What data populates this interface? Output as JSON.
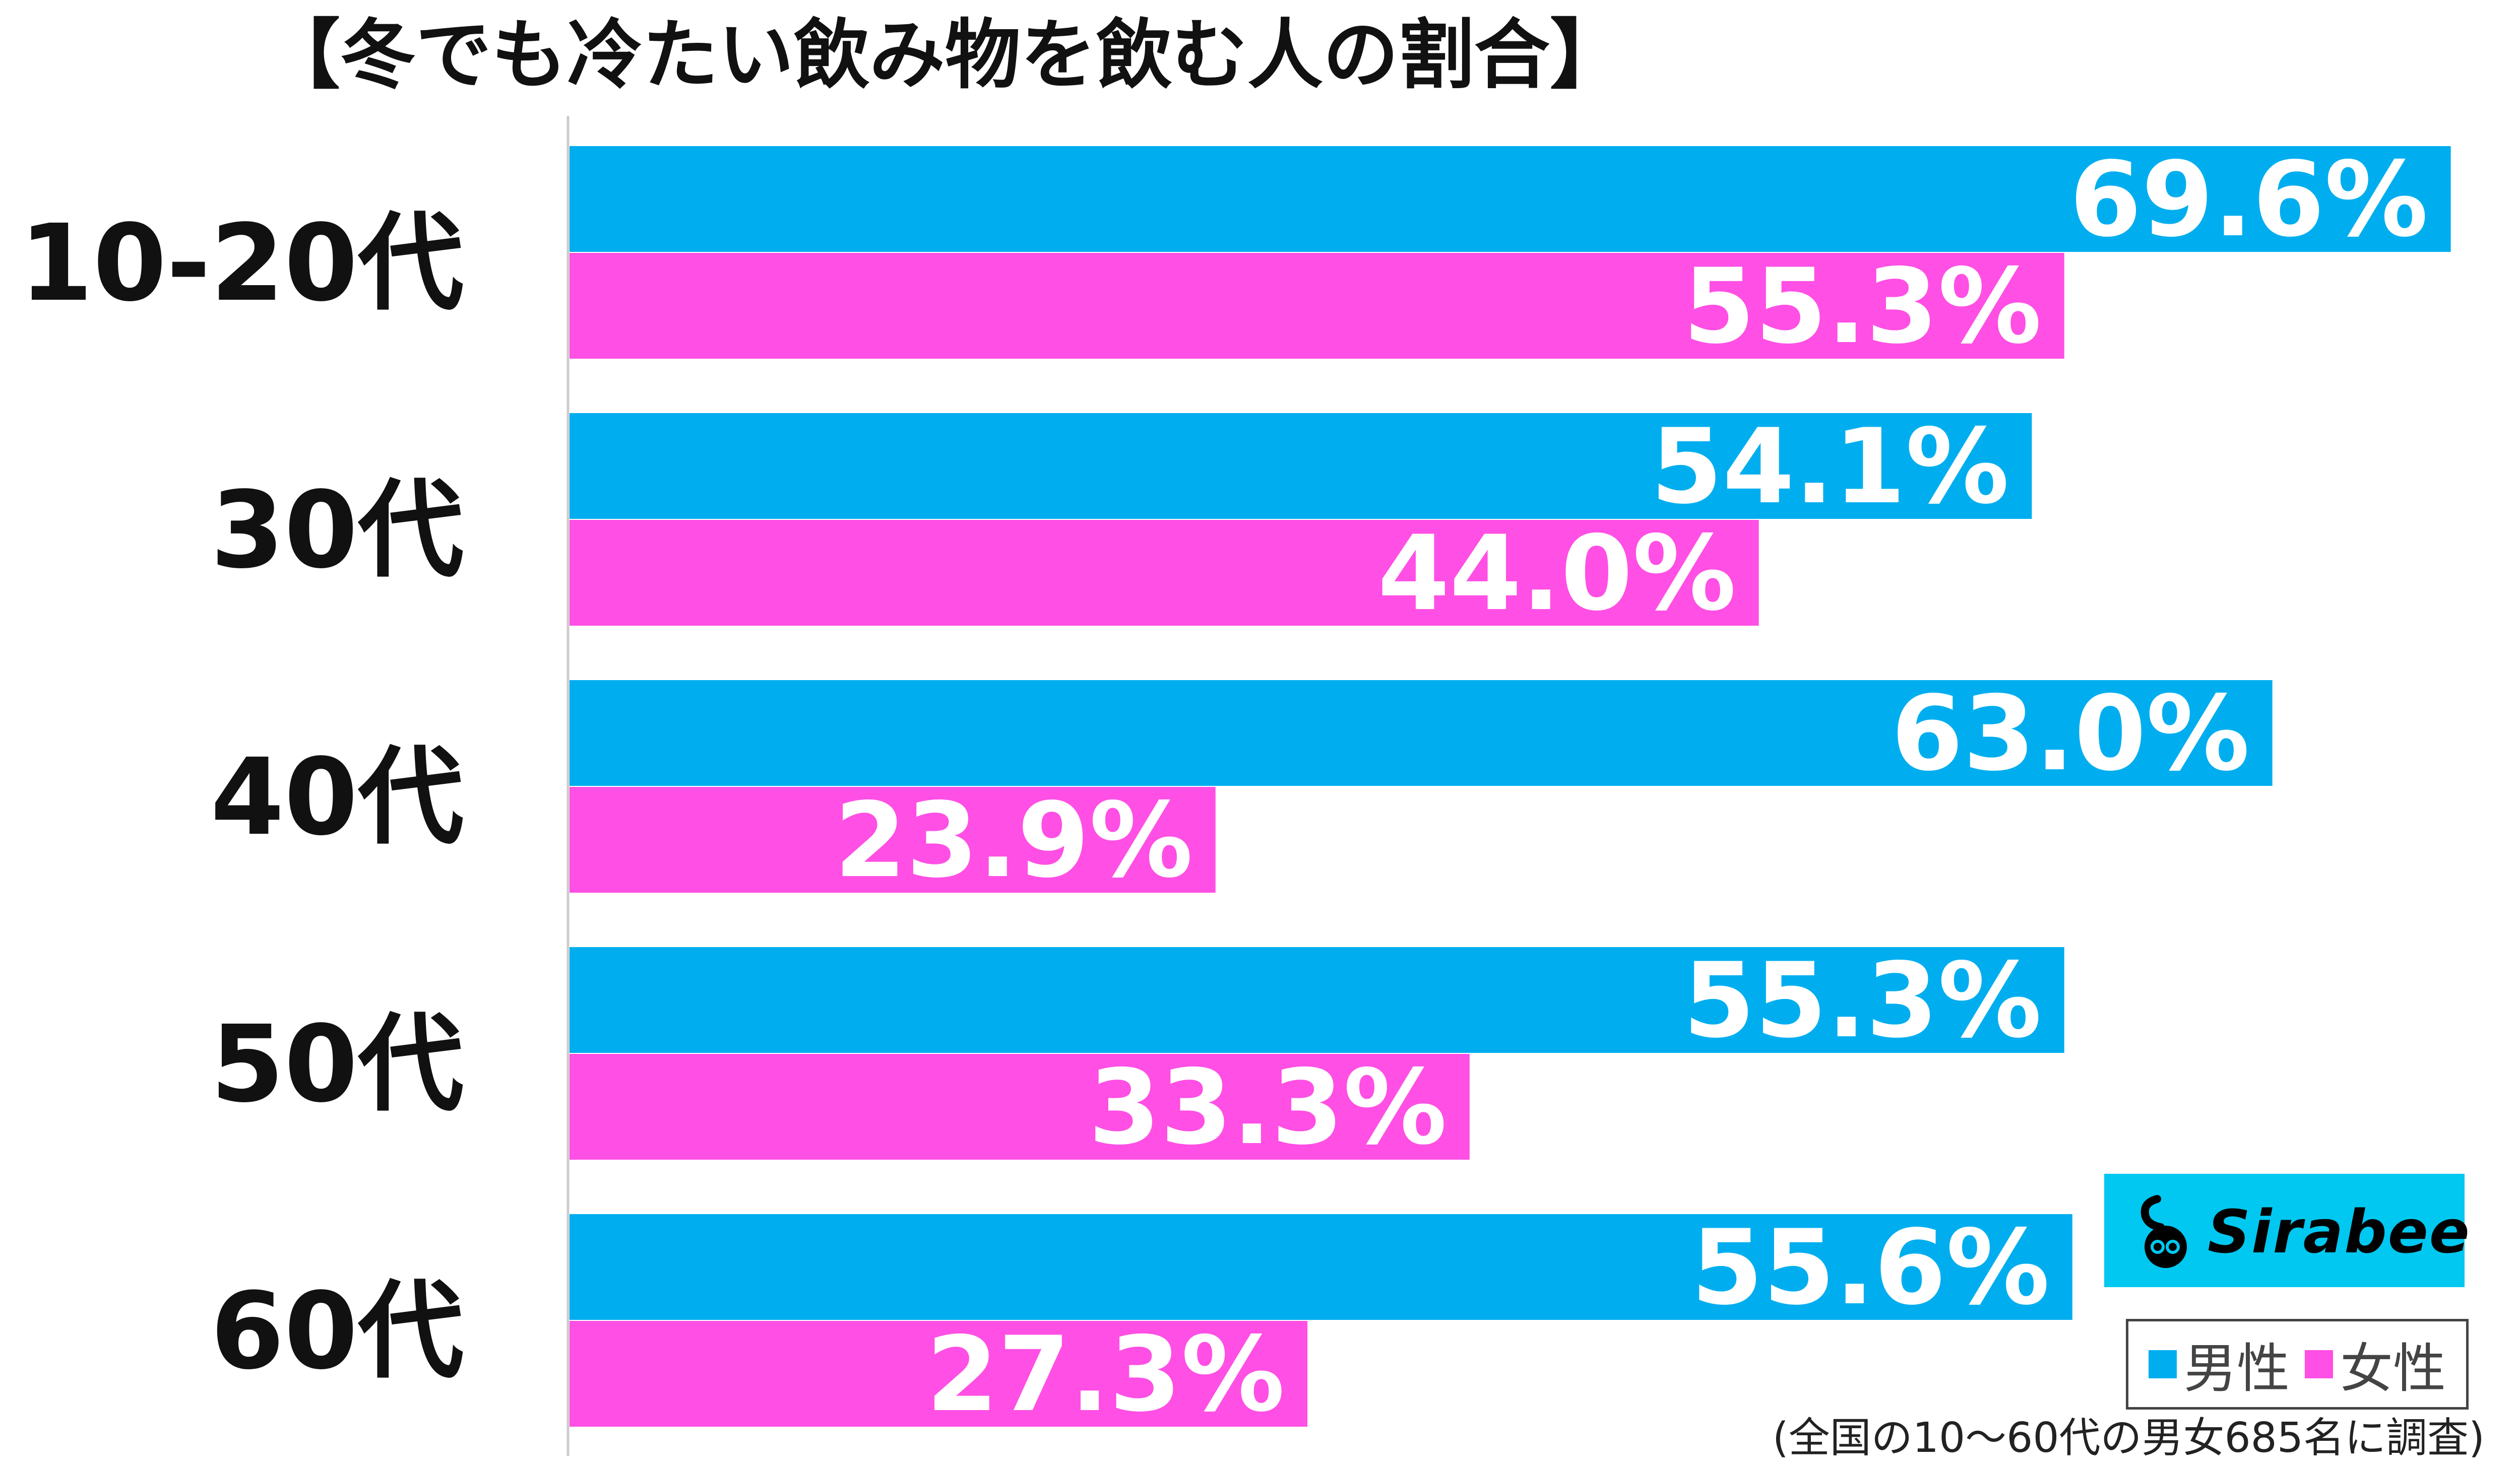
{
  "chart_data": {
    "type": "bar",
    "orientation": "horizontal",
    "title": "【冬でも冷たい飲み物を飲む人の割合】",
    "categories": [
      "10-20代",
      "30代",
      "40代",
      "50代",
      "60代"
    ],
    "series": [
      {
        "name": "男性",
        "color": "#00aeef",
        "values": [
          69.6,
          54.1,
          63.0,
          55.3,
          55.6
        ],
        "labels": [
          "69.6%",
          "54.1%",
          "63.0%",
          "55.3%",
          "55.6%"
        ]
      },
      {
        "name": "女性",
        "color": "#ff4fe4",
        "values": [
          55.3,
          44.0,
          23.9,
          33.3,
          27.3
        ],
        "labels": [
          "55.3%",
          "44.0%",
          "23.9%",
          "33.3%",
          "27.3%"
        ]
      }
    ],
    "xlim": [
      0,
      100
    ],
    "grid": false,
    "legend_position": "bottom-right",
    "footnote": "(全国の10〜60代の男女685名に調査)"
  },
  "brand": {
    "name": "Sirabee",
    "color": "#00c8f0"
  },
  "legend": {
    "male": "男性",
    "female": "女性"
  }
}
